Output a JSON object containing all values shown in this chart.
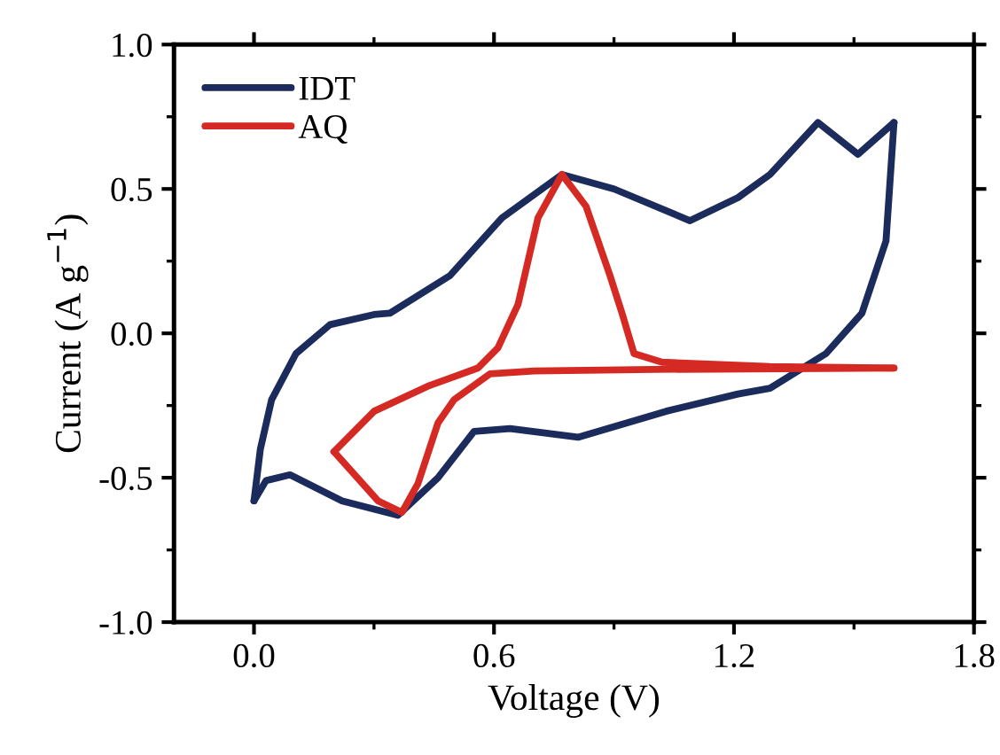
{
  "chart_data": {
    "type": "line",
    "xlabel": "Voltage (V)",
    "ylabel": "Current (A g$^{−1}$)",
    "xlim": [
      -0.2,
      1.8
    ],
    "ylim": [
      -1.0,
      1.0
    ],
    "xticks": [
      {
        "value": 0.0,
        "label": "0.0"
      },
      {
        "value": 0.3,
        "label": null
      },
      {
        "value": 0.6,
        "label": "0.6"
      },
      {
        "value": 0.9,
        "label": null
      },
      {
        "value": 1.2,
        "label": "1.2"
      },
      {
        "value": 1.5,
        "label": null
      },
      {
        "value": 1.8,
        "label": "1.8"
      }
    ],
    "yticks": [
      {
        "value": -1.0,
        "label": "-1.0"
      },
      {
        "value": -0.75,
        "label": null
      },
      {
        "value": -0.5,
        "label": "-0.5"
      },
      {
        "value": -0.25,
        "label": null
      },
      {
        "value": 0.0,
        "label": "0.0"
      },
      {
        "value": 0.25,
        "label": null
      },
      {
        "value": 0.5,
        "label": "0.5"
      },
      {
        "value": 0.75,
        "label": null
      },
      {
        "value": 1.0,
        "label": "1.0"
      }
    ],
    "legend": "top left",
    "grid": false,
    "marker": "none",
    "line_style": "solid",
    "series": [
      {
        "name": "IDT",
        "color": "#1b2b5b",
        "x": [
          0.0,
          0.016,
          0.044,
          0.105,
          0.19,
          0.3,
          0.34,
          0.49,
          0.62,
          0.77,
          0.9,
          1.09,
          1.21,
          1.29,
          1.41,
          1.51,
          1.6
        ],
        "values": [
          -0.58,
          -0.4,
          -0.23,
          -0.07,
          0.03,
          0.065,
          0.07,
          0.2,
          0.4,
          0.55,
          0.5,
          0.39,
          0.47,
          0.55,
          0.73,
          0.62,
          0.73
        ]
      },
      {
        "color": "#1b2b5b",
        "x": [
          1.6,
          1.58,
          1.52,
          1.43,
          1.29,
          1.21,
          1.03,
          0.81,
          0.64,
          0.55,
          0.46,
          0.36,
          0.22,
          0.09,
          0.03,
          0.0
        ],
        "values": [
          0.73,
          0.32,
          0.07,
          -0.07,
          -0.19,
          -0.21,
          -0.27,
          -0.36,
          -0.33,
          -0.34,
          -0.5,
          -0.63,
          -0.58,
          -0.49,
          -0.51,
          -0.58
        ]
      },
      {
        "name": "AQ",
        "color": "#d42a23",
        "x": [
          0.2,
          0.3,
          0.44,
          0.56,
          0.61,
          0.66,
          0.71,
          0.77,
          0.83,
          0.89,
          0.92,
          0.95,
          1.02,
          1.29,
          1.6
        ],
        "values": [
          -0.41,
          -0.27,
          -0.18,
          -0.12,
          -0.05,
          0.1,
          0.4,
          0.55,
          0.44,
          0.2,
          0.07,
          -0.07,
          -0.1,
          -0.115,
          -0.12
        ]
      },
      {
        "color": "#d42a23",
        "x": [
          1.6,
          1.0,
          0.7,
          0.59,
          0.5,
          0.46,
          0.41,
          0.37,
          0.31,
          0.2
        ],
        "values": [
          -0.12,
          -0.125,
          -0.13,
          -0.14,
          -0.23,
          -0.31,
          -0.52,
          -0.62,
          -0.58,
          -0.41
        ]
      }
    ]
  }
}
